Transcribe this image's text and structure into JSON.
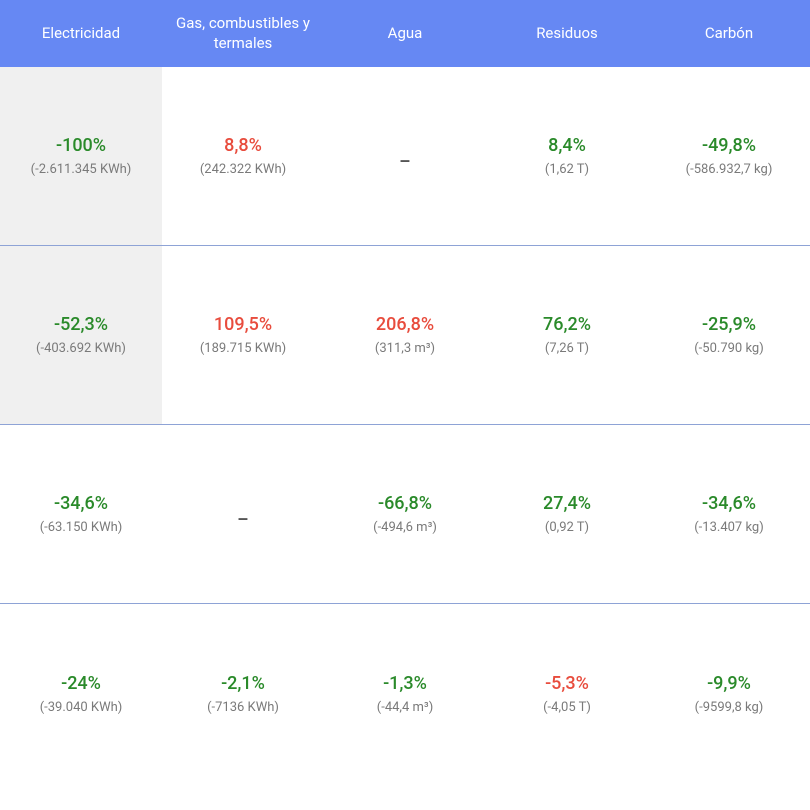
{
  "colors": {
    "header_bg": "#6688f3",
    "header_text": "#ffffff",
    "row_divider": "#8ea3d6",
    "shaded_bg": "#f0f0f0",
    "pct_green": "#2a8a2a",
    "pct_red": "#e84c3d",
    "sub_text": "#7a7a7a"
  },
  "columns": [
    "Electricidad",
    "Gas, combustibles y termales",
    "Agua",
    "Residuos",
    "Carbón"
  ],
  "rows": [
    {
      "shaded_first": true,
      "cells": [
        {
          "pct": "-100%",
          "color": "green",
          "sub": "(-2.611.345 KWh)"
        },
        {
          "pct": "8,8%",
          "color": "red",
          "sub": "(242.322 KWh)"
        },
        {
          "pct": "_",
          "color": "dash",
          "sub": ""
        },
        {
          "pct": "8,4%",
          "color": "green",
          "sub": "(1,62 T)"
        },
        {
          "pct": "-49,8%",
          "color": "green",
          "sub": "(-586.932,7 kg)"
        }
      ]
    },
    {
      "shaded_first": true,
      "cells": [
        {
          "pct": "-52,3%",
          "color": "green",
          "sub": "(-403.692 KWh)"
        },
        {
          "pct": "109,5%",
          "color": "red",
          "sub": "(189.715 KWh)"
        },
        {
          "pct": "206,8%",
          "color": "red",
          "sub": "(311,3 m³)"
        },
        {
          "pct": "76,2%",
          "color": "green",
          "sub": "(7,26 T)"
        },
        {
          "pct": "-25,9%",
          "color": "green",
          "sub": "(-50.790 kg)"
        }
      ]
    },
    {
      "shaded_first": false,
      "cells": [
        {
          "pct": "-34,6%",
          "color": "green",
          "sub": "(-63.150 KWh)"
        },
        {
          "pct": "_",
          "color": "dash",
          "sub": ""
        },
        {
          "pct": "-66,8%",
          "color": "green",
          "sub": "(-494,6 m³)"
        },
        {
          "pct": "27,4%",
          "color": "green",
          "sub": "(0,92 T)"
        },
        {
          "pct": "-34,6%",
          "color": "green",
          "sub": "(-13.407 kg)"
        }
      ]
    },
    {
      "shaded_first": false,
      "cells": [
        {
          "pct": "-24%",
          "color": "green",
          "sub": "(-39.040 KWh)"
        },
        {
          "pct": "-2,1%",
          "color": "green",
          "sub": "(-7136 KWh)"
        },
        {
          "pct": "-1,3%",
          "color": "green",
          "sub": "(-44,4 m³)"
        },
        {
          "pct": "-5,3%",
          "color": "red",
          "sub": "(-4,05 T)"
        },
        {
          "pct": "-9,9%",
          "color": "green",
          "sub": "(-9599,8 kg)"
        }
      ]
    }
  ]
}
